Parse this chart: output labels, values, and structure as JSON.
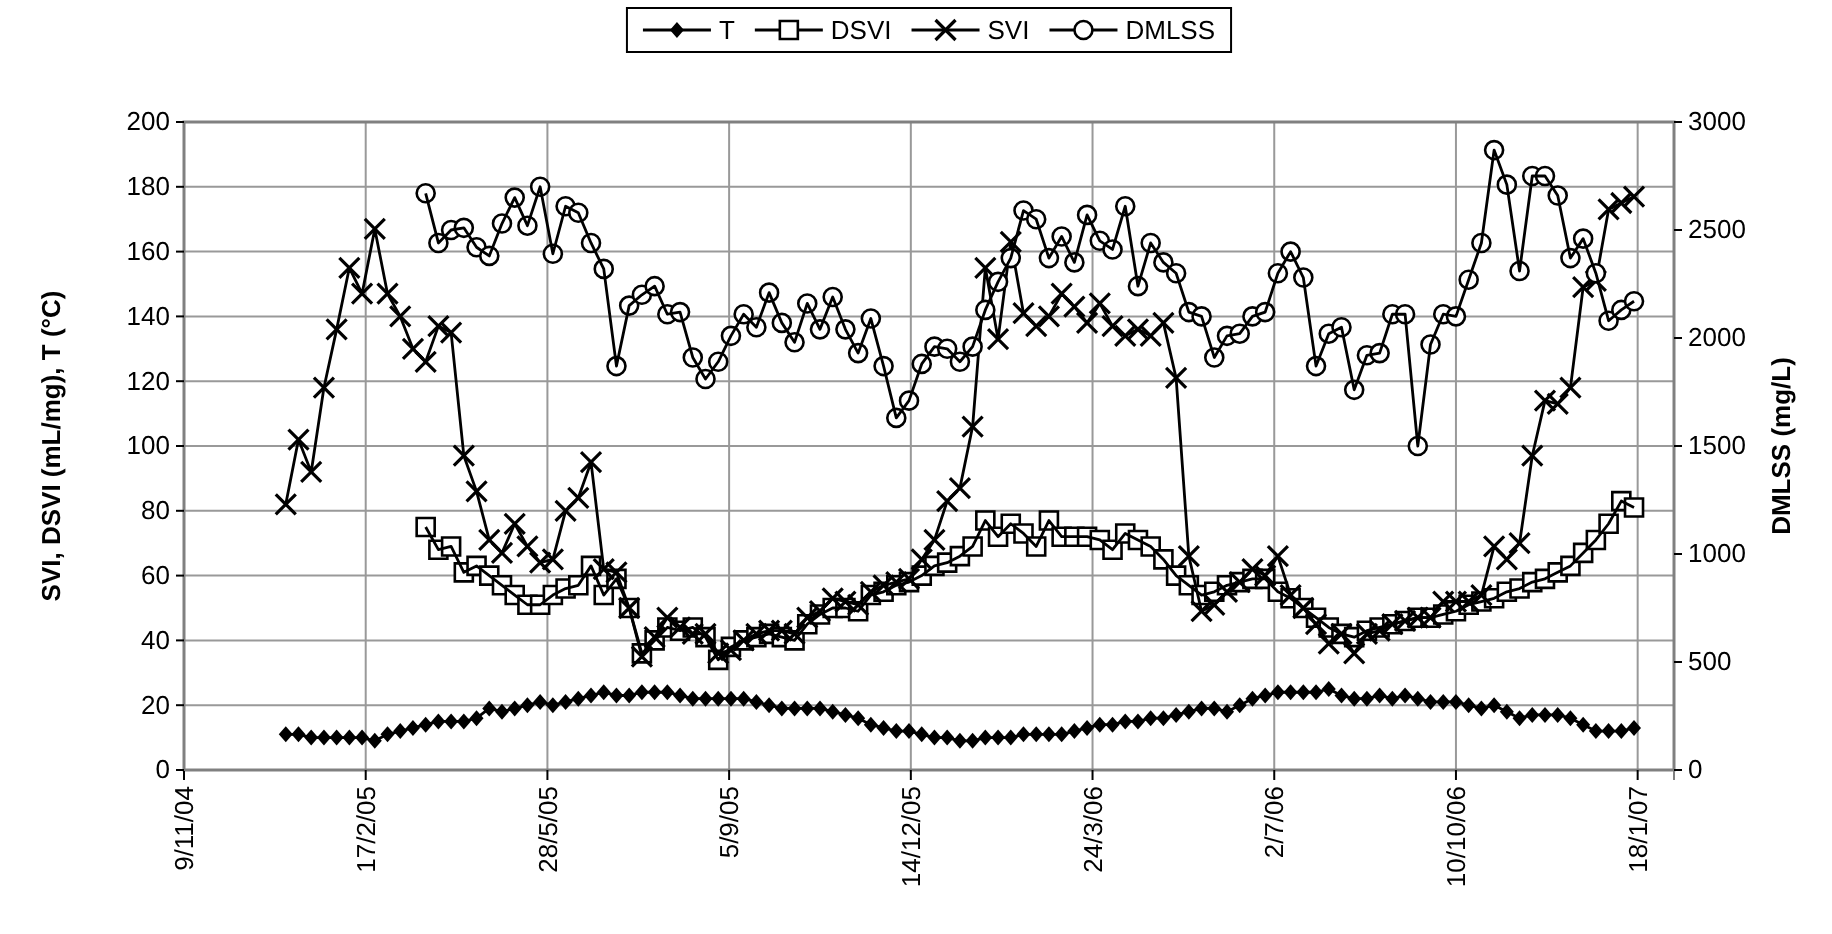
{
  "chart_data": {
    "type": "line",
    "ylabel": "SVI, DSVI (mL/mg), T (°C)",
    "y2label": "DMLSS (mg/L)",
    "xlim": [
      "2004-11-09",
      "2007-02-07"
    ],
    "xticks": [
      {
        "value": "2004-11-09",
        "label": "9/11/04"
      },
      {
        "value": "2005-02-17",
        "label": "17/2/05"
      },
      {
        "value": "2005-05-28",
        "label": "28/5/05"
      },
      {
        "value": "2005-09-05",
        "label": "5/9/05"
      },
      {
        "value": "2005-12-14",
        "label": "14/12/05"
      },
      {
        "value": "2006-03-24",
        "label": "24/3/06"
      },
      {
        "value": "2006-07-02",
        "label": "2/7/06"
      },
      {
        "value": "2006-10-10",
        "label": "10/10/06"
      },
      {
        "value": "2007-01-18",
        "label": "18/1/07"
      }
    ],
    "ylim": [
      0,
      200
    ],
    "yticks": [
      0,
      20,
      40,
      60,
      80,
      100,
      120,
      140,
      160,
      180,
      200
    ],
    "y2lim": [
      0,
      3000
    ],
    "y2ticks": [
      0,
      500,
      1000,
      1500,
      2000,
      2500,
      3000
    ],
    "grid": true,
    "legend": "top",
    "x": [
      "2005-01-04",
      "2005-01-11",
      "2005-01-18",
      "2005-01-25",
      "2005-02-01",
      "2005-02-08",
      "2005-02-15",
      "2005-02-22",
      "2005-03-01",
      "2005-03-08",
      "2005-03-15",
      "2005-03-22",
      "2005-03-29",
      "2005-04-05",
      "2005-04-12",
      "2005-04-19",
      "2005-04-26",
      "2005-05-03",
      "2005-05-10",
      "2005-05-17",
      "2005-05-24",
      "2005-05-31",
      "2005-06-07",
      "2005-06-14",
      "2005-06-21",
      "2005-06-28",
      "2005-07-05",
      "2005-07-12",
      "2005-07-19",
      "2005-07-26",
      "2005-08-02",
      "2005-08-09",
      "2005-08-16",
      "2005-08-23",
      "2005-08-30",
      "2005-09-06",
      "2005-09-13",
      "2005-09-20",
      "2005-09-27",
      "2005-10-04",
      "2005-10-11",
      "2005-10-18",
      "2005-10-25",
      "2005-11-01",
      "2005-11-08",
      "2005-11-15",
      "2005-11-22",
      "2005-11-29",
      "2005-12-06",
      "2005-12-13",
      "2005-12-20",
      "2005-12-27",
      "2006-01-03",
      "2006-01-10",
      "2006-01-17",
      "2006-01-24",
      "2006-01-31",
      "2006-02-07",
      "2006-02-14",
      "2006-02-21",
      "2006-02-28",
      "2006-03-07",
      "2006-03-14",
      "2006-03-21",
      "2006-03-28",
      "2006-04-04",
      "2006-04-11",
      "2006-04-18",
      "2006-04-25",
      "2006-05-02",
      "2006-05-09",
      "2006-05-16",
      "2006-05-23",
      "2006-05-30",
      "2006-06-06",
      "2006-06-13",
      "2006-06-20",
      "2006-06-27",
      "2006-07-04",
      "2006-07-11",
      "2006-07-18",
      "2006-07-25",
      "2006-08-01",
      "2006-08-08",
      "2006-08-15",
      "2006-08-22",
      "2006-08-29",
      "2006-09-05",
      "2006-09-12",
      "2006-09-19",
      "2006-09-26",
      "2006-10-03",
      "2006-10-10",
      "2006-10-17",
      "2006-10-24",
      "2006-10-31",
      "2006-11-07",
      "2006-11-14",
      "2006-11-21",
      "2006-11-28",
      "2006-12-05",
      "2006-12-12",
      "2006-12-19",
      "2006-12-26",
      "2007-01-02",
      "2007-01-09",
      "2007-01-16"
    ],
    "series": [
      {
        "name": "T",
        "color": "#000000",
        "marker": "diamond",
        "values": [
          11,
          11,
          10,
          10,
          10,
          10,
          10,
          9,
          11,
          12,
          13,
          14,
          15,
          15,
          15,
          16,
          19,
          18,
          19,
          20,
          21,
          20,
          21,
          22,
          23,
          24,
          23,
          23,
          24,
          24,
          24,
          23,
          22,
          22,
          22,
          22,
          22,
          21,
          20,
          19,
          19,
          19,
          19,
          18,
          17,
          16,
          14,
          13,
          12,
          12,
          11,
          10,
          10,
          9,
          9,
          10,
          10,
          10,
          11,
          11,
          11,
          11,
          12,
          13,
          14,
          14,
          15,
          15,
          16,
          16,
          17,
          18,
          19,
          19,
          18,
          20,
          22,
          23,
          24,
          24,
          24,
          24,
          25,
          23,
          22,
          22,
          23,
          22,
          23,
          22,
          21,
          21,
          21,
          20,
          19,
          20,
          18,
          16,
          17,
          17,
          17,
          16,
          14,
          12,
          12,
          12,
          13
        ]
      },
      {
        "name": "DSVI",
        "color": "#000000",
        "marker": "square",
        "values": [
          null,
          null,
          null,
          null,
          null,
          null,
          null,
          null,
          null,
          null,
          null,
          75,
          68,
          69,
          61,
          63,
          60,
          57,
          54,
          51,
          51,
          54,
          56,
          57,
          63,
          54,
          59,
          50,
          36,
          40,
          44,
          43,
          44,
          41,
          34,
          38,
          40,
          41,
          42,
          41,
          40,
          45,
          48,
          50,
          50,
          49,
          54,
          55,
          57,
          58,
          60,
          63,
          64,
          66,
          69,
          77,
          72,
          76,
          73,
          69,
          77,
          72,
          72,
          72,
          71,
          68,
          73,
          71,
          69,
          65,
          60,
          57,
          54,
          55,
          57,
          58,
          59,
          59,
          55,
          53,
          50,
          47,
          44,
          42,
          41,
          43,
          44,
          45,
          46,
          47,
          47,
          48,
          49,
          51,
          52,
          53,
          55,
          56,
          58,
          59,
          61,
          63,
          67,
          71,
          76,
          83,
          81
        ]
      },
      {
        "name": "SVI",
        "color": "#000000",
        "marker": "cross",
        "values": [
          82,
          102,
          92,
          118,
          136,
          155,
          147,
          167,
          147,
          140,
          130,
          126,
          137,
          135,
          97,
          86,
          71,
          67,
          76,
          69,
          64,
          65,
          80,
          84,
          95,
          62,
          61,
          50,
          35,
          41,
          47,
          44,
          42,
          42,
          36,
          37,
          40,
          42,
          43,
          43,
          42,
          47,
          49,
          53,
          52,
          51,
          55,
          57,
          58,
          59,
          65,
          71,
          83,
          87,
          106,
          155,
          133,
          163,
          141,
          137,
          140,
          147,
          143,
          138,
          144,
          137,
          134,
          136,
          134,
          138,
          121,
          66,
          49,
          51,
          55,
          58,
          62,
          60,
          66,
          54,
          50,
          45,
          39,
          42,
          36,
          42,
          43,
          45,
          46,
          47,
          47,
          52,
          52,
          52,
          54,
          69,
          65,
          70,
          97,
          114,
          113,
          118,
          149,
          151,
          173,
          175,
          177
        ]
      },
      {
        "name": "DMLSS",
        "color": "#000000",
        "marker": "circle",
        "axis": "y2",
        "values": [
          null,
          null,
          null,
          null,
          null,
          null,
          null,
          null,
          null,
          null,
          null,
          2670,
          2440,
          2500,
          2510,
          2420,
          2380,
          2530,
          2650,
          2520,
          2700,
          2390,
          2610,
          2580,
          2440,
          2320,
          1870,
          2150,
          2200,
          2240,
          2110,
          2120,
          1910,
          1810,
          1890,
          2010,
          2110,
          2050,
          2210,
          2070,
          1980,
          2160,
          2040,
          2190,
          2040,
          1930,
          2090,
          1870,
          1630,
          1710,
          1880,
          1960,
          1950,
          1890,
          1960,
          2130,
          2260,
          2370,
          2590,
          2550,
          2370,
          2470,
          2350,
          2570,
          2450,
          2410,
          2610,
          2240,
          2440,
          2350,
          2300,
          2120,
          2100,
          1910,
          2010,
          2020,
          2100,
          2120,
          2300,
          2400,
          2280,
          1870,
          2020,
          2050,
          1760,
          1920,
          1930,
          2110,
          2110,
          1500,
          1970,
          2110,
          2100,
          2270,
          2440,
          2870,
          2710,
          2310,
          2750,
          2750,
          2660,
          2370,
          2460,
          2300,
          2080,
          2130,
          2170
        ]
      }
    ]
  }
}
